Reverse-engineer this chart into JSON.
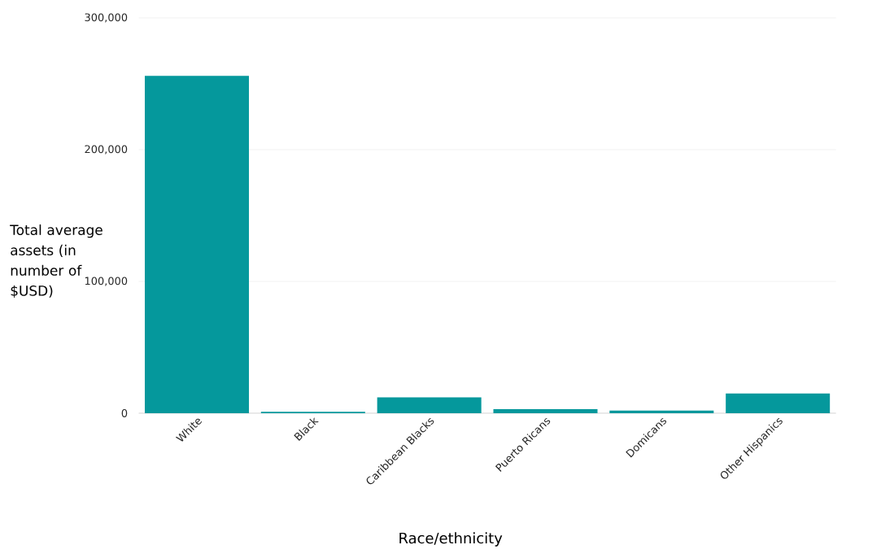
{
  "chart_data": {
    "type": "bar",
    "xlabel": "Race/ethnicity",
    "ylabel": "Total average assets (in number of $USD)",
    "categories": [
      "White",
      "Black",
      "Caribbean Blacks",
      "Puerto Ricans",
      "Domicans",
      "Other Hispanics"
    ],
    "values": [
      256000,
      1000,
      12000,
      3000,
      2000,
      15000
    ],
    "color": "#05989c",
    "ylim": [
      0,
      300000
    ],
    "yticks": [
      {
        "value": 0,
        "label": "0"
      },
      {
        "value": 100000,
        "label": "100,000"
      },
      {
        "value": 200000,
        "label": "200,000"
      },
      {
        "value": 300000,
        "label": "300,000"
      }
    ],
    "grid": "y"
  }
}
